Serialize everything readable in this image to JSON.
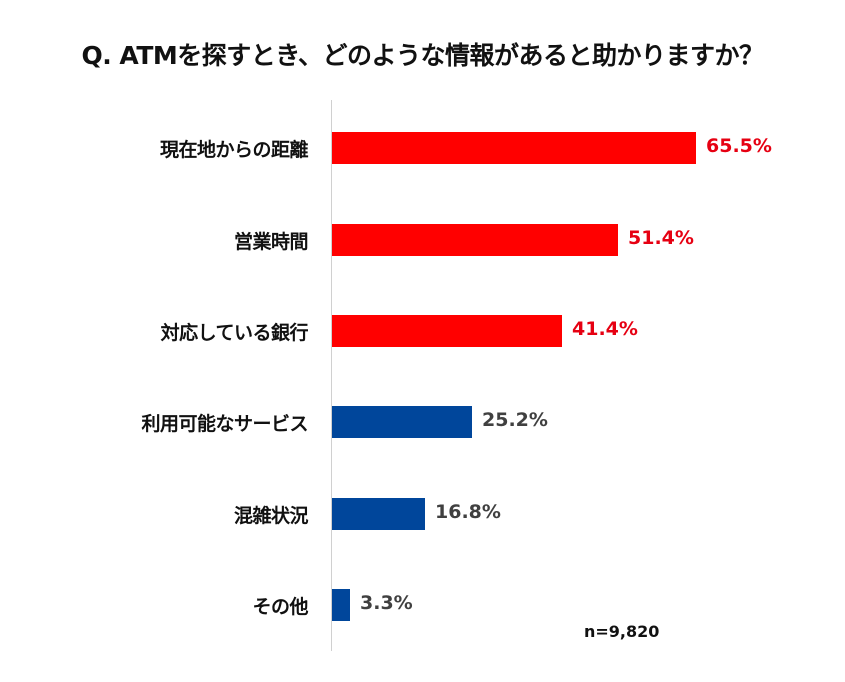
{
  "chart_data": {
    "type": "bar",
    "orientation": "horizontal",
    "title": "Q. ATMを探すとき、どのような情報があると助かりますか？",
    "xlabel": "",
    "ylabel": "",
    "categories": [
      "現在地からの距離",
      "営業時間",
      "対応している銀行",
      "利用可能なサービス",
      "混雑状況",
      "その他"
    ],
    "values": [
      65.5,
      51.4,
      41.4,
      25.2,
      16.8,
      3.3
    ],
    "value_labels": [
      "65.5%",
      "51.4%",
      "41.4%",
      "25.2%",
      "16.8%",
      "3.3%"
    ],
    "unit": "%",
    "xlim": [
      0,
      65.5
    ],
    "grid": false,
    "legend": null,
    "annotations": [
      "n=9,820"
    ],
    "colors": {
      "highlight": "#ff0000",
      "normal": "#00469b",
      "highlight_label": "#e60012",
      "normal_label": "#404040"
    },
    "highlighted_indices": [
      0,
      1,
      2
    ]
  },
  "title": "Q. ATMを探すとき、どのような情報があると助かりますか？",
  "rows": [
    {
      "label": "現在地からの距離",
      "value_label": "65.5%"
    },
    {
      "label": "営業時間",
      "value_label": "51.4%"
    },
    {
      "label": "対応している銀行",
      "value_label": "41.4%"
    },
    {
      "label": "利用可能なサービス",
      "value_label": "25.2%"
    },
    {
      "label": "混雑状況",
      "value_label": "16.8%"
    },
    {
      "label": "その他",
      "value_label": "3.3%"
    }
  ],
  "sample_size": "n=9,820"
}
